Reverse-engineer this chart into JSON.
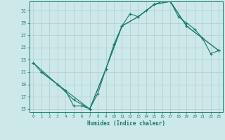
{
  "xlabel": "Humidex (Indice chaleur)",
  "bg_color": "#cce8e8",
  "grid_color": "#b0cccc",
  "line_color": "#1a7a6e",
  "xlim": [
    -0.5,
    23.5
  ],
  "ylim": [
    14.5,
    32.5
  ],
  "xticks": [
    0,
    1,
    2,
    3,
    4,
    5,
    6,
    7,
    8,
    9,
    10,
    11,
    12,
    13,
    14,
    15,
    16,
    17,
    18,
    19,
    20,
    21,
    22,
    23
  ],
  "yticks": [
    15,
    17,
    19,
    21,
    23,
    25,
    27,
    29,
    31
  ],
  "curve1_x": [
    0,
    1,
    3,
    4,
    5,
    6,
    7,
    8,
    9,
    10,
    11,
    12,
    13,
    14,
    15,
    16,
    17,
    18,
    19,
    20,
    21,
    22,
    23
  ],
  "curve1_y": [
    22.5,
    21.0,
    19.0,
    18.0,
    15.5,
    15.5,
    15.0,
    17.5,
    21.5,
    25.5,
    28.5,
    30.5,
    30.0,
    31.0,
    32.0,
    32.5,
    32.5,
    30.0,
    29.0,
    28.0,
    26.5,
    24.0,
    24.5
  ],
  "curve2_x": [
    1,
    3,
    5,
    7,
    9,
    11,
    13,
    15,
    17,
    19,
    21,
    23
  ],
  "curve2_y": [
    21.0,
    19.0,
    16.5,
    15.0,
    21.5,
    28.5,
    30.0,
    32.0,
    32.5,
    28.5,
    26.5,
    24.5
  ],
  "curve3_x": [
    0,
    3,
    7,
    9,
    11,
    13,
    15,
    17,
    19,
    21,
    23
  ],
  "curve3_y": [
    22.5,
    19.0,
    15.0,
    21.5,
    28.5,
    30.0,
    32.0,
    32.5,
    28.5,
    26.5,
    24.5
  ]
}
